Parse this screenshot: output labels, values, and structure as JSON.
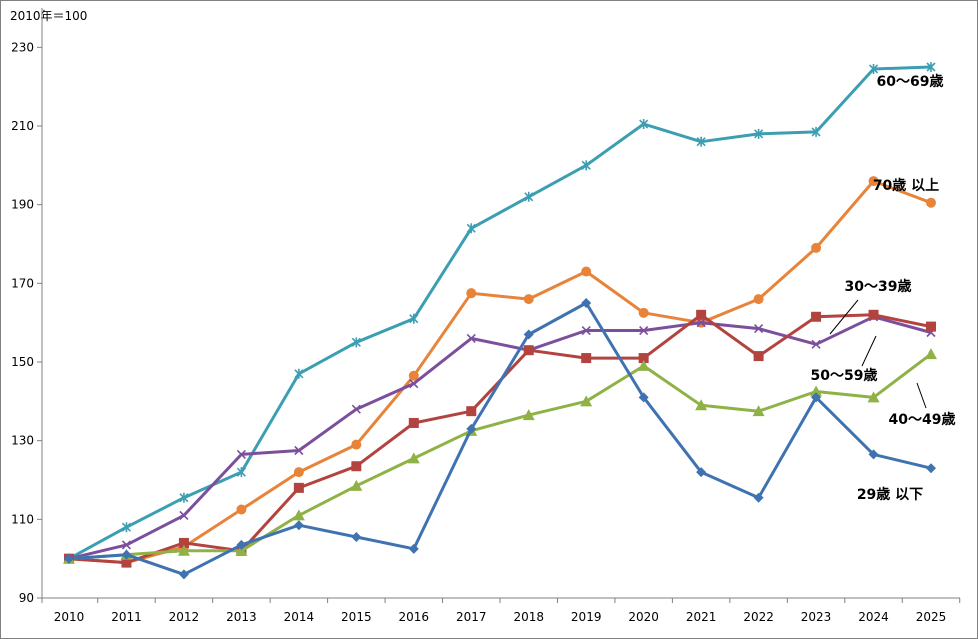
{
  "chart_data": {
    "type": "line",
    "unit_label": "2010年＝100",
    "x": [
      "2010",
      "2011",
      "2012",
      "2013",
      "2014",
      "2015",
      "2016",
      "2017",
      "2018",
      "2019",
      "2020",
      "2021",
      "2022",
      "2023",
      "2024",
      "2025"
    ],
    "ylim": [
      90,
      240
    ],
    "yticks": [
      90,
      110,
      130,
      150,
      170,
      190,
      210,
      230
    ],
    "grid": false,
    "legend": "inline labels",
    "series": [
      {
        "name": "60〜69歳",
        "color": "#3b9eb2",
        "marker": "star",
        "values": [
          100,
          108,
          115.5,
          122,
          147,
          155,
          161,
          184,
          192,
          200,
          210.5,
          206,
          208,
          208.5,
          224.5,
          225
        ]
      },
      {
        "name": "70歳 以上",
        "color": "#e8833a",
        "marker": "circle",
        "values": [
          100,
          99,
          103,
          112.5,
          122,
          129,
          146.5,
          167.5,
          166,
          173,
          162.5,
          160,
          166,
          179,
          196,
          190.5
        ]
      },
      {
        "name": "30〜39歳",
        "color": "#7b4f9c",
        "marker": "x",
        "values": [
          100,
          103.5,
          111,
          126.5,
          127.5,
          138,
          144.5,
          156,
          153,
          158,
          158,
          160,
          158.5,
          154.5,
          161.5,
          157.5
        ]
      },
      {
        "name": "50〜59歳",
        "color": "#b3433f",
        "marker": "square",
        "values": [
          100,
          99,
          104,
          102,
          118,
          123.5,
          134.5,
          137.5,
          153,
          151,
          151,
          162,
          151.5,
          161.5,
          162,
          159
        ]
      },
      {
        "name": "40〜49歳",
        "color": "#8fb246",
        "marker": "triangle",
        "values": [
          100,
          101,
          102,
          102,
          111,
          118.5,
          125.5,
          132.5,
          136.5,
          140,
          149,
          139,
          137.5,
          142.5,
          141,
          152
        ]
      },
      {
        "name": "29歳 以下",
        "color": "#3f72b0",
        "marker": "diamond",
        "values": [
          100,
          101,
          96,
          103.5,
          108.5,
          105.5,
          102.5,
          133,
          157,
          165,
          141,
          122,
          115.5,
          141,
          126.5,
          123
        ]
      }
    ]
  }
}
